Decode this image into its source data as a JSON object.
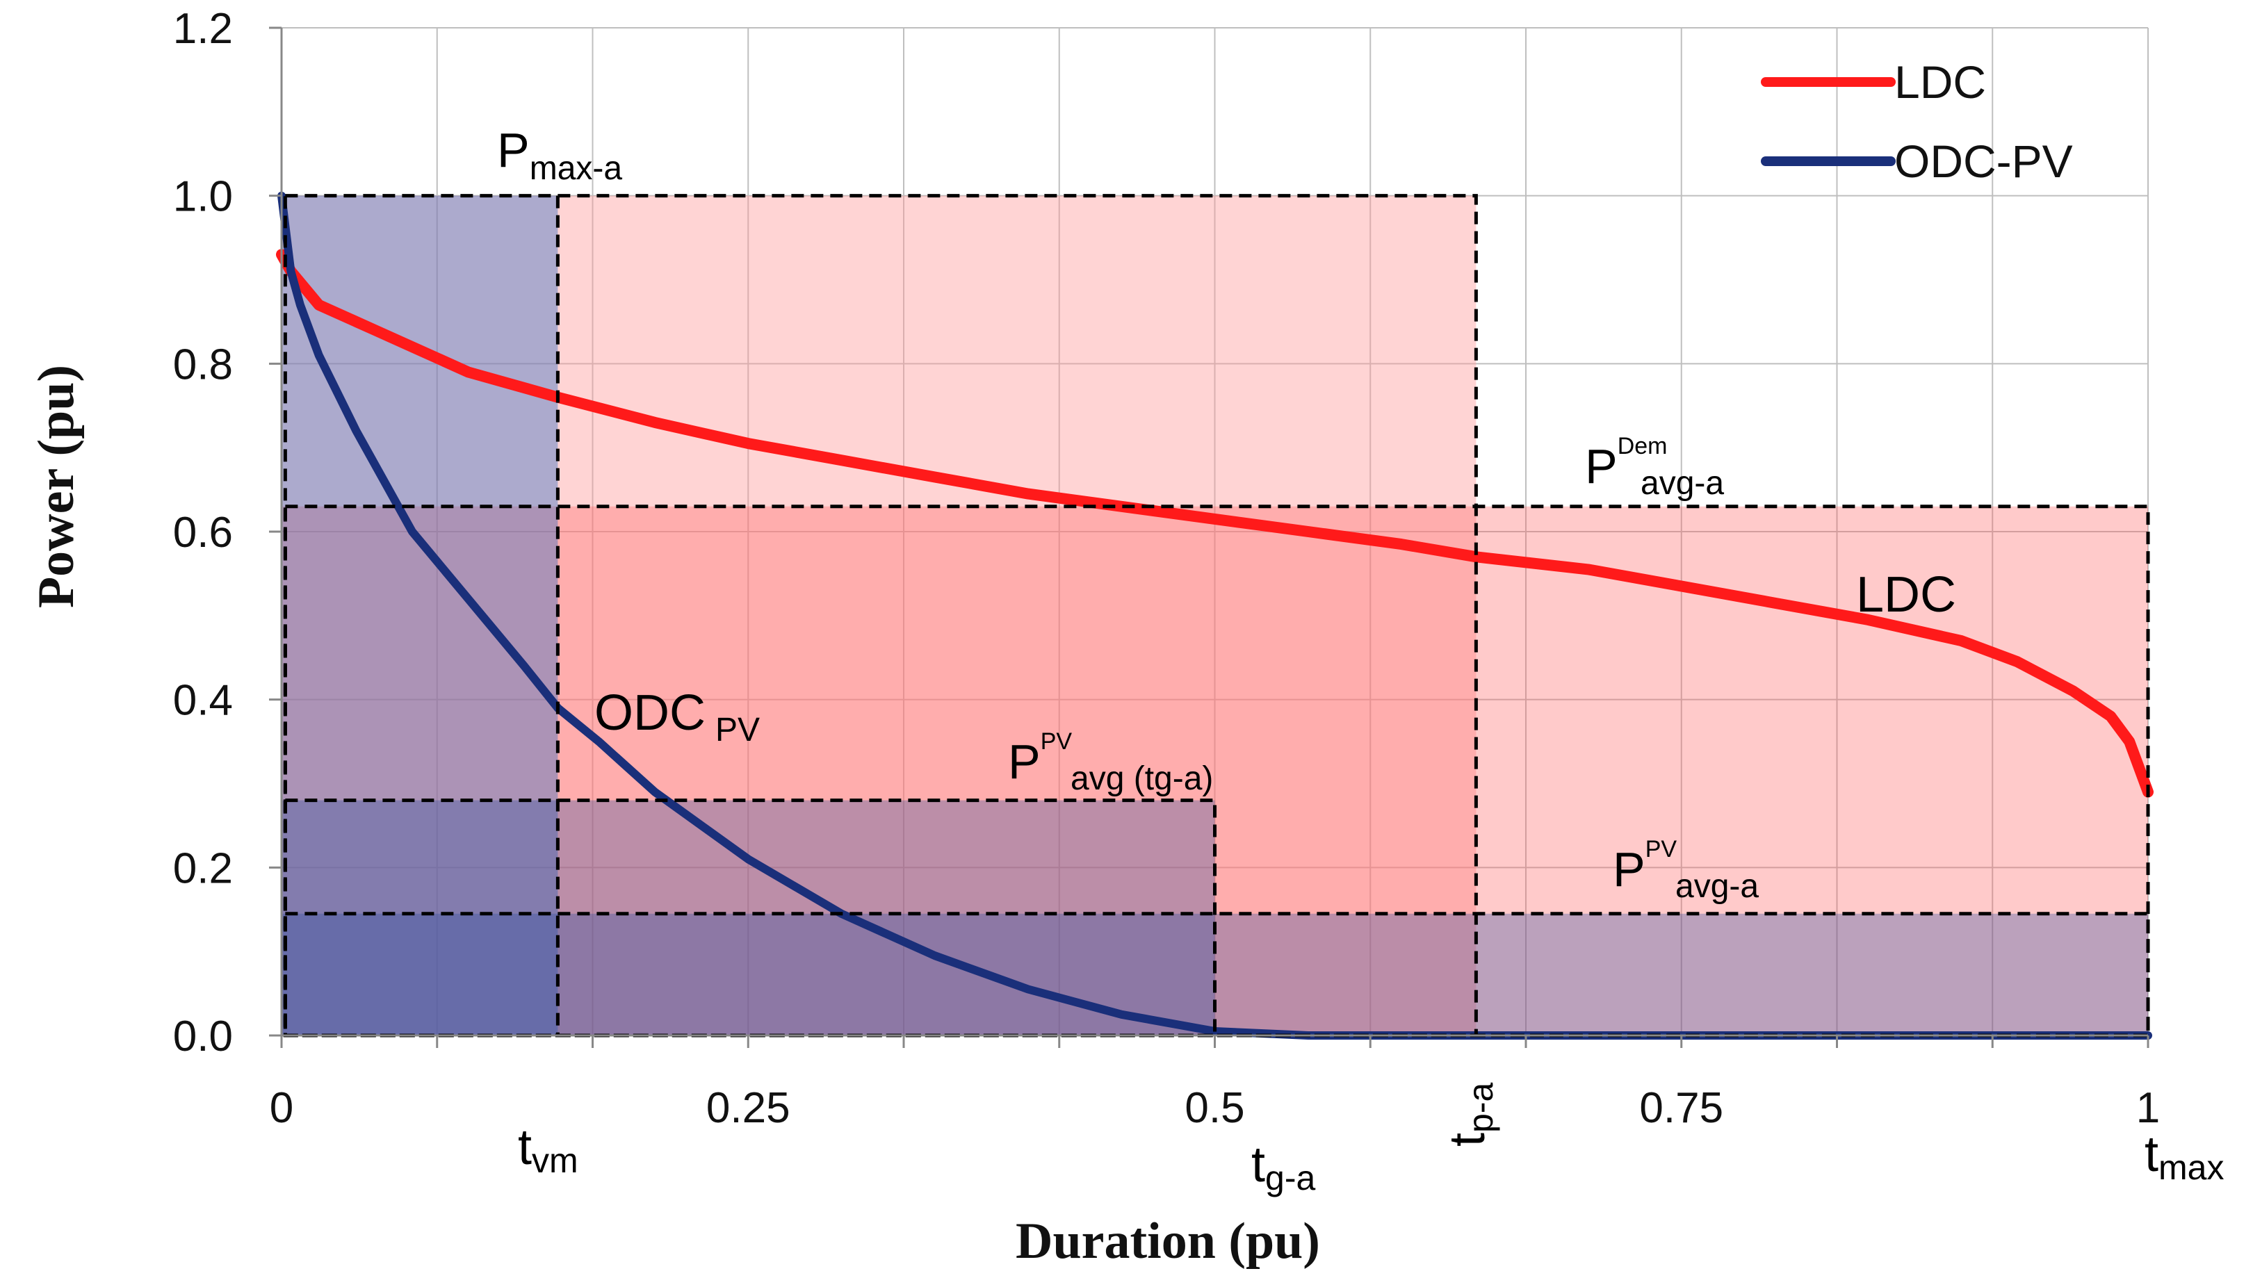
{
  "chart_data": {
    "type": "line",
    "xlabel": "Duration (pu)",
    "ylabel": "Power (pu)",
    "xlim": [
      0,
      1
    ],
    "ylim": [
      0,
      1.2
    ],
    "x_ticks": [
      {
        "value": 0,
        "label": "0"
      },
      {
        "value": 0.25,
        "label": "0.25"
      },
      {
        "value": 0.5,
        "label": "0.5"
      },
      {
        "value": 0.75,
        "label": "0.75"
      },
      {
        "value": 1,
        "label": "1"
      }
    ],
    "y_ticks": [
      {
        "value": 0,
        "label": "0.0"
      },
      {
        "value": 0.2,
        "label": "0.2"
      },
      {
        "value": 0.4,
        "label": "0.4"
      },
      {
        "value": 0.6,
        "label": "0.6"
      },
      {
        "value": 0.8,
        "label": "0.8"
      },
      {
        "value": 1.0,
        "label": "1.0"
      },
      {
        "value": 1.2,
        "label": "1.2"
      }
    ],
    "grid": true,
    "legend_position": "top-right",
    "series": [
      {
        "name": "LDC",
        "color": "#ff1a1a",
        "x": [
          0,
          0.005,
          0.02,
          0.05,
          0.1,
          0.148,
          0.2,
          0.25,
          0.3,
          0.35,
          0.4,
          0.45,
          0.5,
          0.55,
          0.6,
          0.64,
          0.7,
          0.75,
          0.8,
          0.85,
          0.9,
          0.93,
          0.96,
          0.98,
          0.99,
          0.995,
          1.0
        ],
        "y": [
          0.93,
          0.91,
          0.87,
          0.84,
          0.79,
          0.76,
          0.73,
          0.705,
          0.685,
          0.665,
          0.645,
          0.63,
          0.615,
          0.6,
          0.585,
          0.57,
          0.555,
          0.535,
          0.515,
          0.495,
          0.47,
          0.445,
          0.41,
          0.38,
          0.35,
          0.32,
          0.29
        ]
      },
      {
        "name": "ODC-PV",
        "color": "#1a2f7a",
        "x": [
          0,
          0.005,
          0.01,
          0.02,
          0.04,
          0.07,
          0.1,
          0.13,
          0.148,
          0.17,
          0.2,
          0.25,
          0.3,
          0.35,
          0.4,
          0.45,
          0.5,
          0.55,
          0.6,
          0.7,
          0.8,
          0.9,
          1.0
        ],
        "y": [
          1.0,
          0.91,
          0.87,
          0.81,
          0.72,
          0.6,
          0.52,
          0.44,
          0.39,
          0.35,
          0.29,
          0.21,
          0.145,
          0.095,
          0.055,
          0.025,
          0.005,
          0.0,
          0.0,
          0.0,
          0.0,
          0.0,
          0.0
        ]
      }
    ],
    "reference_levels": [
      {
        "name": "P_max-a",
        "value": 1.0
      },
      {
        "name": "P_Dem_avg-a",
        "value": 0.63
      },
      {
        "name": "P_PV_avg(tg-a)",
        "value": 0.28
      },
      {
        "name": "P_PV_avg-a",
        "value": 0.145
      }
    ],
    "reference_times": [
      {
        "name": "t_vm",
        "value": 0.148
      },
      {
        "name": "t_g-a",
        "value": 0.5
      },
      {
        "name": "t_p-a",
        "value": 0.64
      },
      {
        "name": "t_max",
        "value": 1.0
      }
    ],
    "annotations": {
      "pmax": {
        "main": "P",
        "sub": "max-a"
      },
      "pdem": {
        "main": "P",
        "sup": "Dem",
        "sub": "avg-a"
      },
      "ppv_tg": {
        "main": "P",
        "sup": "PV",
        "sub": "avg (tg-a)"
      },
      "ppv_a": {
        "main": "P",
        "sup": "PV",
        "sub": "avg-a"
      },
      "ldc_curve": "LDC",
      "odc_curve": {
        "main": "ODC",
        "sub": "PV"
      },
      "tvm": {
        "main": "t",
        "sub": "vm"
      },
      "tga": {
        "main": "t",
        "sub": "g-a"
      },
      "tpa": {
        "main": "t",
        "sub": "p-a"
      },
      "tmax": {
        "main": "t",
        "sub": "max"
      }
    }
  }
}
